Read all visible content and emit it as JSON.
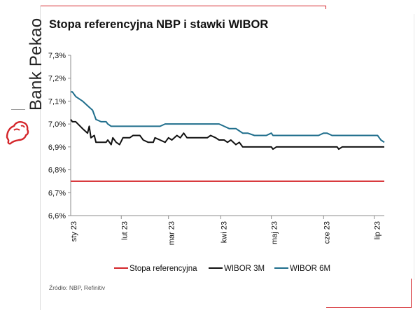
{
  "brand": {
    "name": "Bank Pekao",
    "colors": {
      "accent": "#d4252a"
    },
    "logo_icon": "bison-icon"
  },
  "chart_data": {
    "type": "line",
    "title": "Stopa referencyjna NBP i stawki WIBOR",
    "xlabel": "",
    "ylabel": "",
    "x_ticks": [
      "sty 23",
      "lut 23",
      "mar 23",
      "kwi 23",
      "maj 23",
      "cze 23",
      "lip 23"
    ],
    "x_range": [
      "2023-01-02",
      "2023-07-07"
    ],
    "ylim": [
      6.6,
      7.3
    ],
    "y_ticks": [
      6.6,
      6.7,
      6.8,
      6.9,
      7.0,
      7.1,
      7.2,
      7.3
    ],
    "y_tick_labels": [
      "6,6%",
      "6,7%",
      "6,8%",
      "6,9%",
      "7,0%",
      "7,1%",
      "7,2%",
      "7,3%"
    ],
    "grid": false,
    "legend_position": "bottom",
    "series": [
      {
        "name": "Stopa referencyjna",
        "color": "#d4252a",
        "points": [
          [
            "2023-01-02",
            6.75
          ],
          [
            "2023-07-07",
            6.75
          ]
        ]
      },
      {
        "name": "WIBOR 3M",
        "color": "#111111",
        "points": [
          [
            "2023-01-02",
            7.02
          ],
          [
            "2023-01-03",
            7.01
          ],
          [
            "2023-01-05",
            7.01
          ],
          [
            "2023-01-09",
            6.98
          ],
          [
            "2023-01-12",
            6.96
          ],
          [
            "2023-01-13",
            6.99
          ],
          [
            "2023-01-14",
            6.94
          ],
          [
            "2023-01-16",
            6.95
          ],
          [
            "2023-01-17",
            6.92
          ],
          [
            "2023-01-20",
            6.92
          ],
          [
            "2023-01-23",
            6.92
          ],
          [
            "2023-01-24",
            6.93
          ],
          [
            "2023-01-25",
            6.92
          ],
          [
            "2023-01-26",
            6.91
          ],
          [
            "2023-01-27",
            6.94
          ],
          [
            "2023-01-29",
            6.92
          ],
          [
            "2023-01-31",
            6.91
          ],
          [
            "2023-02-02",
            6.94
          ],
          [
            "2023-02-06",
            6.94
          ],
          [
            "2023-02-08",
            6.95
          ],
          [
            "2023-02-12",
            6.95
          ],
          [
            "2023-02-14",
            6.93
          ],
          [
            "2023-02-17",
            6.92
          ],
          [
            "2023-02-20",
            6.92
          ],
          [
            "2023-02-21",
            6.94
          ],
          [
            "2023-02-24",
            6.93
          ],
          [
            "2023-02-27",
            6.92
          ],
          [
            "2023-03-01",
            6.94
          ],
          [
            "2023-03-03",
            6.93
          ],
          [
            "2023-03-06",
            6.95
          ],
          [
            "2023-03-08",
            6.94
          ],
          [
            "2023-03-10",
            6.96
          ],
          [
            "2023-03-12",
            6.94
          ],
          [
            "2023-03-15",
            6.94
          ],
          [
            "2023-03-20",
            6.94
          ],
          [
            "2023-03-24",
            6.94
          ],
          [
            "2023-03-26",
            6.95
          ],
          [
            "2023-03-29",
            6.94
          ],
          [
            "2023-03-31",
            6.93
          ],
          [
            "2023-04-03",
            6.93
          ],
          [
            "2023-04-05",
            6.92
          ],
          [
            "2023-04-07",
            6.93
          ],
          [
            "2023-04-10",
            6.91
          ],
          [
            "2023-04-12",
            6.92
          ],
          [
            "2023-04-14",
            6.9
          ],
          [
            "2023-04-20",
            6.9
          ],
          [
            "2023-05-01",
            6.9
          ],
          [
            "2023-05-02",
            6.89
          ],
          [
            "2023-05-04",
            6.9
          ],
          [
            "2023-05-09",
            6.9
          ],
          [
            "2023-05-25",
            6.9
          ],
          [
            "2023-06-01",
            6.9
          ],
          [
            "2023-06-09",
            6.9
          ],
          [
            "2023-06-10",
            6.89
          ],
          [
            "2023-06-12",
            6.9
          ],
          [
            "2023-07-07",
            6.9
          ]
        ]
      },
      {
        "name": "WIBOR 6M",
        "color": "#1f6e8c",
        "points": [
          [
            "2023-01-02",
            7.14
          ],
          [
            "2023-01-03",
            7.14
          ],
          [
            "2023-01-05",
            7.12
          ],
          [
            "2023-01-09",
            7.1
          ],
          [
            "2023-01-12",
            7.08
          ],
          [
            "2023-01-15",
            7.06
          ],
          [
            "2023-01-17",
            7.02
          ],
          [
            "2023-01-20",
            7.01
          ],
          [
            "2023-01-23",
            7.01
          ],
          [
            "2023-01-24",
            7.0
          ],
          [
            "2023-01-26",
            6.99
          ],
          [
            "2023-02-01",
            6.99
          ],
          [
            "2023-02-15",
            6.99
          ],
          [
            "2023-02-24",
            6.99
          ],
          [
            "2023-02-27",
            7.0
          ],
          [
            "2023-03-10",
            7.0
          ],
          [
            "2023-03-20",
            7.0
          ],
          [
            "2023-03-31",
            7.0
          ],
          [
            "2023-04-03",
            6.99
          ],
          [
            "2023-04-06",
            6.98
          ],
          [
            "2023-04-10",
            6.98
          ],
          [
            "2023-04-12",
            6.97
          ],
          [
            "2023-04-14",
            6.96
          ],
          [
            "2023-04-17",
            6.96
          ],
          [
            "2023-04-21",
            6.95
          ],
          [
            "2023-04-28",
            6.95
          ],
          [
            "2023-05-01",
            6.96
          ],
          [
            "2023-05-02",
            6.95
          ],
          [
            "2023-05-10",
            6.95
          ],
          [
            "2023-05-25",
            6.95
          ],
          [
            "2023-05-29",
            6.95
          ],
          [
            "2023-06-01",
            6.96
          ],
          [
            "2023-06-03",
            6.96
          ],
          [
            "2023-06-06",
            6.95
          ],
          [
            "2023-06-15",
            6.95
          ],
          [
            "2023-07-01",
            6.95
          ],
          [
            "2023-07-03",
            6.95
          ],
          [
            "2023-07-04",
            6.94
          ],
          [
            "2023-07-05",
            6.93
          ],
          [
            "2023-07-07",
            6.92
          ]
        ]
      }
    ]
  },
  "footer": {
    "source": "Źródło: NBP, Refinitiv"
  }
}
